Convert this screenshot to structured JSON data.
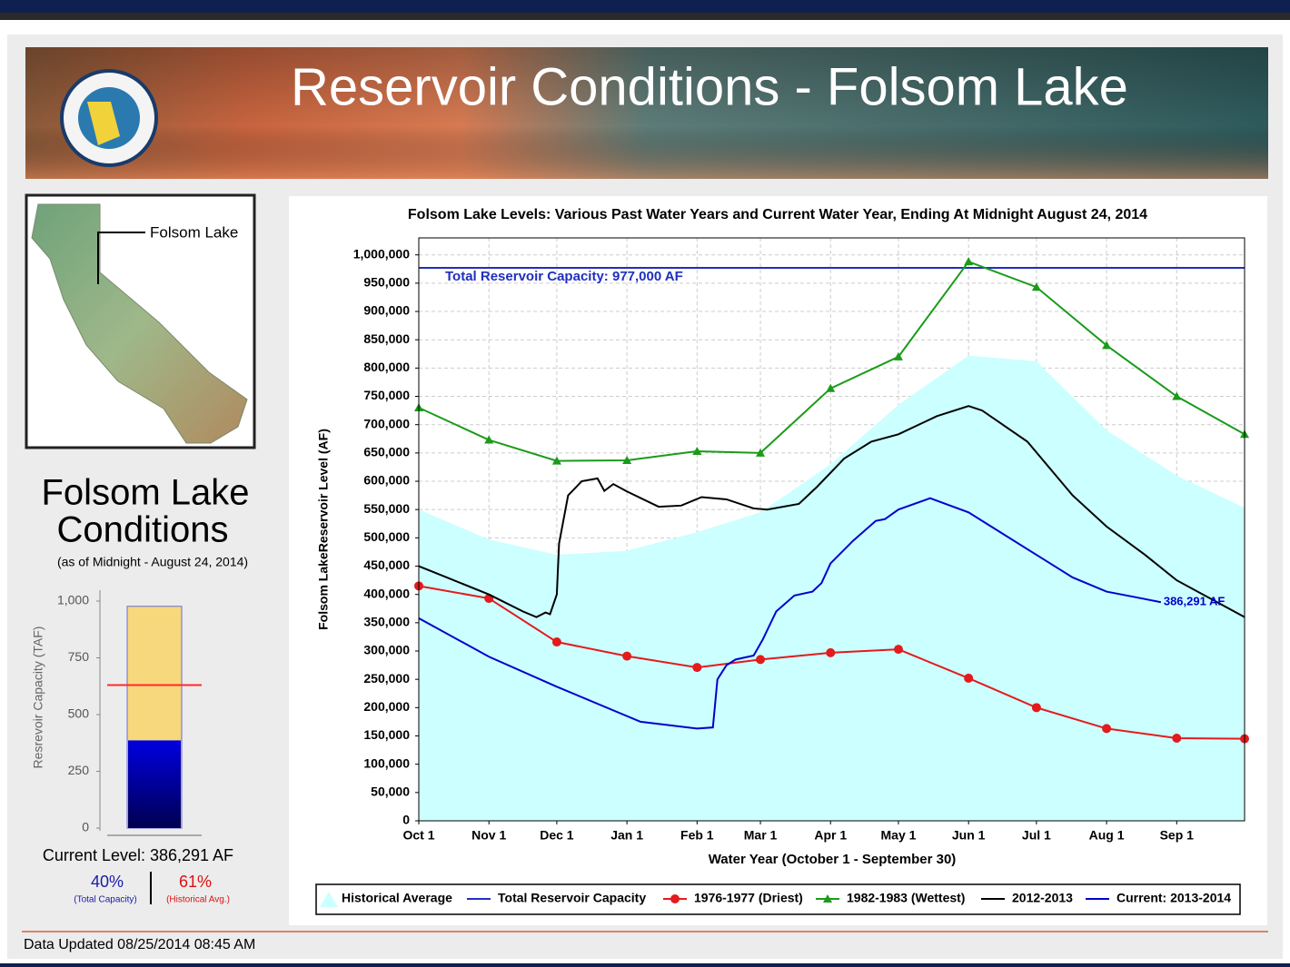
{
  "header": {
    "title": "Reservoir Conditions - Folsom Lake"
  },
  "map": {
    "label": "Folsom Lake"
  },
  "conditions": {
    "title_lines": [
      "Folsom Lake",
      "Conditions"
    ],
    "subtitle": "(as of Midnight - August 24, 2014)",
    "current_level": "Current Level: 386,291 AF",
    "pct_capacity": "40%",
    "pct_capacity_note": "(Total Capacity)",
    "pct_historical": "61%",
    "pct_historical_note": "(Historical Avg.)"
  },
  "footer": {
    "updated": "Data Updated 08/25/2014 08:45 AM"
  },
  "chart_data": [
    {
      "type": "line",
      "title": "Folsom Lake Levels: Various Past Water Years and Current Water Year, Ending At Midnight August 24, 2014",
      "x_label": "Water Year (October 1 - September 30)",
      "y_label": "Folsom LakeReservoir Level (AF)",
      "xlim": [
        0,
        365
      ],
      "xticks": [
        {
          "value": 0,
          "label": "Oct 1"
        },
        {
          "value": 31,
          "label": "Nov 1"
        },
        {
          "value": 61,
          "label": "Dec 1"
        },
        {
          "value": 92,
          "label": "Jan 1"
        },
        {
          "value": 123,
          "label": "Feb 1"
        },
        {
          "value": 151,
          "label": "Mar 1"
        },
        {
          "value": 182,
          "label": "Apr 1"
        },
        {
          "value": 212,
          "label": "May 1"
        },
        {
          "value": 243,
          "label": "Jun 1"
        },
        {
          "value": 273,
          "label": "Jul 1"
        },
        {
          "value": 304,
          "label": "Aug 1"
        },
        {
          "value": 335,
          "label": "Sep 1"
        }
      ],
      "ylim": [
        0,
        1030000
      ],
      "yticks": [
        0,
        {
          "value": 50000,
          "label": "50,000"
        },
        {
          "value": 100000,
          "label": "100,000"
        },
        {
          "value": 150000,
          "label": "150,000"
        },
        {
          "value": 200000,
          "label": "200,000"
        },
        {
          "value": 250000,
          "label": "250,000"
        },
        {
          "value": 300000,
          "label": "300,000"
        },
        {
          "value": 350000,
          "label": "350,000"
        },
        {
          "value": 400000,
          "label": "400,000"
        },
        {
          "value": 450000,
          "label": "450,000"
        },
        {
          "value": 500000,
          "label": "500,000"
        },
        {
          "value": 550000,
          "label": "550,000"
        },
        {
          "value": 600000,
          "label": "600,000"
        },
        {
          "value": 650000,
          "label": "650,000"
        },
        {
          "value": 700000,
          "label": "700,000"
        },
        {
          "value": 750000,
          "label": "750,000"
        },
        {
          "value": 800000,
          "label": "800,000"
        },
        {
          "value": 850000,
          "label": "850,000"
        },
        {
          "value": 900000,
          "label": "900,000"
        },
        {
          "value": 950000,
          "label": "950,000"
        },
        {
          "value": 1000000,
          "label": "1,000,000"
        }
      ],
      "grid": true,
      "series": [
        {
          "name": "Historical Average",
          "color": "#ccffff",
          "style": "area",
          "x": [
            0,
            31,
            61,
            92,
            123,
            151,
            182,
            212,
            243,
            273,
            304,
            335,
            365
          ],
          "values": [
            550000,
            497000,
            470000,
            477000,
            510000,
            545000,
            630000,
            735000,
            822000,
            812000,
            690000,
            610000,
            553000
          ]
        },
        {
          "name": "Total Reservoir Capacity",
          "color": "#1f2fbf",
          "style": "line",
          "label": "Total Reservoir Capacity: 977,000 AF",
          "x": [
            0,
            365
          ],
          "values": [
            977000,
            977000
          ]
        },
        {
          "name": "1976-1977 (Driest)",
          "color": "#e41a1c",
          "style": "line",
          "marker": "circle",
          "x": [
            0,
            31,
            61,
            92,
            123,
            151,
            182,
            212,
            243,
            273,
            304,
            335,
            365
          ],
          "values": [
            415000,
            393000,
            316000,
            291000,
            271000,
            285000,
            297000,
            303000,
            252000,
            200000,
            163000,
            146000,
            145000
          ]
        },
        {
          "name": "1982-1983 (Wettest)",
          "color": "#1a9b1a",
          "style": "line",
          "marker": "triangle",
          "x": [
            0,
            31,
            61,
            92,
            123,
            151,
            182,
            212,
            243,
            273,
            304,
            335,
            365
          ],
          "values": [
            730000,
            673000,
            636000,
            637000,
            653000,
            650000,
            764000,
            820000,
            988000,
            943000,
            840000,
            750000,
            683000
          ]
        },
        {
          "name": "2012-2013",
          "color": "#000000",
          "style": "line",
          "x": [
            0,
            31,
            46,
            52,
            56,
            58,
            61,
            62,
            66,
            72,
            79,
            82,
            86,
            92,
            106,
            116,
            125,
            136,
            148,
            154,
            168,
            176,
            188,
            200,
            212,
            229,
            243,
            249,
            269,
            289,
            304,
            321,
            335,
            365
          ],
          "values": [
            450000,
            400000,
            370000,
            360000,
            368000,
            365000,
            400000,
            490000,
            575000,
            600000,
            605000,
            583000,
            595000,
            582000,
            555000,
            557000,
            572000,
            568000,
            552000,
            550000,
            560000,
            590000,
            640000,
            670000,
            683000,
            715000,
            733000,
            725000,
            670000,
            575000,
            520000,
            470000,
            425000,
            360000
          ]
        },
        {
          "name": "Current: 2013-2014",
          "color": "#0000cc",
          "style": "line",
          "end_label": "386,291 AF",
          "x": [
            0,
            31,
            61,
            98,
            123,
            130,
            132,
            136,
            140,
            148,
            152,
            158,
            166,
            174,
            178,
            182,
            192,
            202,
            206,
            212,
            226,
            243,
            257,
            273,
            289,
            304,
            317,
            328
          ],
          "values": [
            358000,
            290000,
            237000,
            175000,
            163000,
            165000,
            250000,
            275000,
            285000,
            292000,
            320000,
            370000,
            398000,
            405000,
            420000,
            455000,
            495000,
            530000,
            533000,
            550000,
            570000,
            545000,
            510000,
            470000,
            430000,
            405000,
            395000,
            386291
          ]
        }
      ]
    },
    {
      "type": "bar",
      "y_label": "Resrevoir Capacity (TAF)",
      "ylim": [
        0,
        1000
      ],
      "yticks": [
        0,
        250,
        500,
        750,
        {
          "value": 1000,
          "label": "1,000"
        }
      ],
      "capacity": 977,
      "capacity_color": "#f7d87c",
      "current": 386.291,
      "current_color": "#0000e0",
      "historical_average": 630,
      "historical_color": "#ff2a2a"
    }
  ]
}
